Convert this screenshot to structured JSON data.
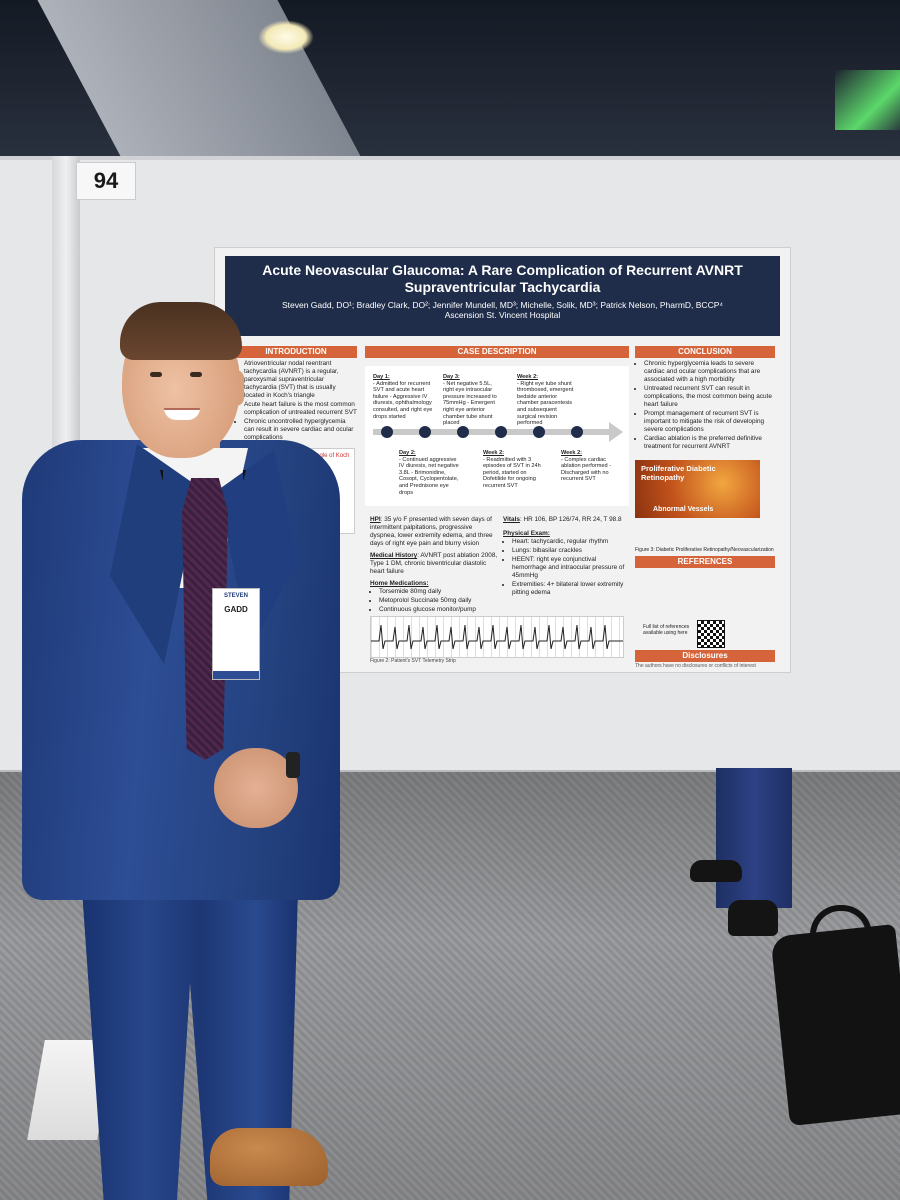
{
  "booth": {
    "number": "94"
  },
  "poster": {
    "title": "Acute Neovascular Glaucoma: A Rare Complication of Recurrent AVNRT Supraventricular Tachycardia",
    "authors": "Steven Gadd, DO¹; Bradley Clark, DO²; Jennifer Mundell, MD³; Michelle, Solik, MD³; Patrick Nelson, PharmD, BCCP⁴",
    "institution": "Ascension St. Vincent Hospital",
    "introduction": {
      "heading": "INTRODUCTION",
      "items": [
        "Atrioventricular nodal reentrant tachycardia (AVNRT) is a regular, paroxysmal supraventricular tachycardia (SVT) that is usually located in Koch's triangle",
        "Acute heart failure is the most common complication of untreated recurrent SVT",
        "Chronic uncontrolled hyperglycemia can result in severe cardiac and ocular complications"
      ],
      "figure_label": "Triangle of Koch"
    },
    "case": {
      "heading": "CASE DESCRIPTION",
      "timeline_top": [
        {
          "day": "Day 1:",
          "text": "- Admitted for recurrent SVT and acute heart failure - Aggressive IV diuresis, ophthalmology consulted, and right eye drops started"
        },
        {
          "day": "Day 3:",
          "text": "- Net negative 5.5L, right eye intraocular pressure increased to 75mmHg - Emergent right eye anterior chamber tube shunt placed"
        },
        {
          "day": "Week 2:",
          "text": "- Right eye tube shunt thrombosed, emergent bedside anterior chamber paracentesis and subsequent surgical revision performed"
        }
      ],
      "timeline_bottom": [
        {
          "day": "Day 2:",
          "text": "- Continued aggressive IV diuresis, net negative 3.8L - Brimonidine, Cosopt, Cyclopentolate, and Prednisone eye drops"
        },
        {
          "day": "Week 2:",
          "text": "- Readmitted with 3 episodes of SVT in 24h period, started on Dofetilide for ongoing recurrent SVT"
        },
        {
          "day": "Week 2:",
          "text": "- Complex cardiac ablation performed - Discharged with no recurrent SVT"
        }
      ],
      "hpi_label": "HPI",
      "hpi": ": 35 y/o F presented with seven days of intermittent palpitations, progressive dyspnea, lower extremity edema, and three days of right eye pain and blurry vision",
      "history_label": "Medical History",
      "history": ": AVNRT post ablation 2008, Type 1 DM, chronic biventricular diastolic heart failure",
      "meds_label": "Home Medications:",
      "meds": [
        "Torsemide 80mg daily",
        "Metoprolol Succinate 50mg daily",
        "Continuous glucose monitor/pump"
      ],
      "vitals_label": "Vitals",
      "vitals": ": HR 106, BP 126/74, RR 24, T 98.8",
      "exam_label": "Physical Exam:",
      "exam": [
        "Heart: tachycardic, regular rhythm",
        "Lungs: bibasilar crackles",
        "HEENT: right eye conjunctival hemorrhage and intraocular pressure of 45mmHg",
        "Extremities: 4+ bilateral lower extremity pitting edema"
      ],
      "ecg_caption": "Figure 2: Patient's SVT Telemetry Strip"
    },
    "conclusion": {
      "heading": "CONCLUSION",
      "items": [
        "Chronic hyperglycemia leads to severe cardiac and ocular complications that are associated with a high morbidity",
        "Untreated recurrent SVT can result in complications, the most common being acute heart failure",
        "Prompt management of recurrent SVT is important to mitigate the risk of developing severe complications",
        "Cardiac ablation is the preferred definitive treatment for recurrent AVNRT"
      ],
      "figure_title": "Proliferative Diabetic Retinopathy",
      "figure_sub": "Abnormal Vessels",
      "figure_caption": "Figure 3: Diabetic Proliferative Retinopathy/Neovascularization"
    },
    "references": {
      "heading": "REFERENCES",
      "qr_note": "Full list of references available using here"
    },
    "disclosures": {
      "heading": "Disclosures",
      "text": "The authors have no disclosures or conflicts of interest"
    }
  },
  "badge": {
    "name_line1": "STEVEN",
    "name_line2": "GADD"
  },
  "colors": {
    "poster_header": "#1f2d4a",
    "section_header": "#d5643b",
    "suit": "#24427f"
  }
}
